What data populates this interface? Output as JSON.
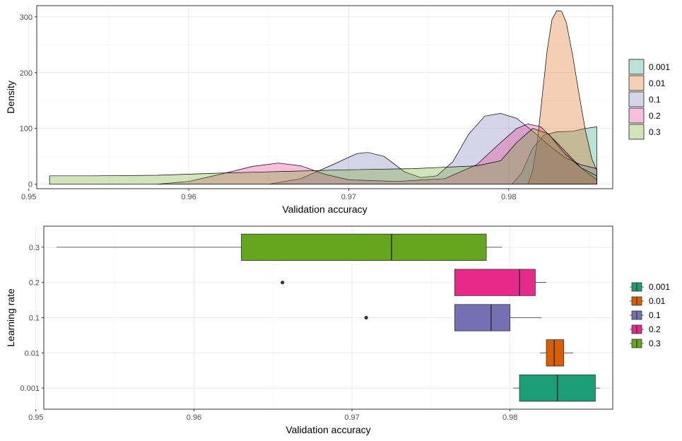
{
  "chart_data": [
    {
      "type": "area",
      "subtype": "density",
      "xlabel": "Validation accuracy",
      "ylabel": "Density",
      "xlim": [
        0.9505,
        0.9865
      ],
      "ylim": [
        -8,
        320
      ],
      "x_ticks": [
        0.95,
        0.96,
        0.97,
        0.98
      ],
      "x_tick_labels": [
        "0.95",
        "0.96",
        "0.97",
        "0.98"
      ],
      "y_ticks": [
        0,
        100,
        200,
        300
      ],
      "y_tick_labels": [
        "0",
        "100",
        "200",
        "300"
      ],
      "grid": true,
      "legend_position": "right",
      "series": [
        {
          "name": "0.001",
          "color": "#1B9E77",
          "points": [
            [
              0.9802,
              0
            ],
            [
              0.9808,
              20
            ],
            [
              0.9815,
              65
            ],
            [
              0.9822,
              88
            ],
            [
              0.983,
              94
            ],
            [
              0.984,
              95
            ],
            [
              0.9848,
              100
            ],
            [
              0.9855,
              103
            ],
            [
              0.9855,
              0
            ]
          ]
        },
        {
          "name": "0.01",
          "color": "#D95F02",
          "points": [
            [
              0.9812,
              0
            ],
            [
              0.9815,
              25
            ],
            [
              0.9818,
              80
            ],
            [
              0.9821,
              160
            ],
            [
              0.9824,
              240
            ],
            [
              0.9827,
              295
            ],
            [
              0.983,
              311
            ],
            [
              0.9833,
              310
            ],
            [
              0.9836,
              290
            ],
            [
              0.984,
              230
            ],
            [
              0.9844,
              160
            ],
            [
              0.9848,
              95
            ],
            [
              0.9852,
              45
            ],
            [
              0.9855,
              25
            ],
            [
              0.9855,
              0
            ]
          ]
        },
        {
          "name": "0.1",
          "color": "#7570B3",
          "points": [
            [
              0.965,
              0
            ],
            [
              0.967,
              10
            ],
            [
              0.969,
              35
            ],
            [
              0.9705,
              55
            ],
            [
              0.9712,
              57
            ],
            [
              0.9722,
              50
            ],
            [
              0.9735,
              22
            ],
            [
              0.9745,
              12
            ],
            [
              0.9755,
              15
            ],
            [
              0.9765,
              40
            ],
            [
              0.9775,
              90
            ],
            [
              0.9785,
              122
            ],
            [
              0.9795,
              127
            ],
            [
              0.9805,
              118
            ],
            [
              0.9815,
              95
            ],
            [
              0.9825,
              70
            ],
            [
              0.9835,
              48
            ],
            [
              0.9845,
              35
            ],
            [
              0.9855,
              28
            ],
            [
              0.9855,
              0
            ]
          ]
        },
        {
          "name": "0.2",
          "color": "#E7298A",
          "points": [
            [
              0.958,
              0
            ],
            [
              0.96,
              5
            ],
            [
              0.962,
              18
            ],
            [
              0.964,
              32
            ],
            [
              0.9656,
              38
            ],
            [
              0.967,
              33
            ],
            [
              0.9685,
              18
            ],
            [
              0.97,
              8
            ],
            [
              0.973,
              5
            ],
            [
              0.976,
              10
            ],
            [
              0.978,
              35
            ],
            [
              0.9795,
              75
            ],
            [
              0.9805,
              100
            ],
            [
              0.9812,
              108
            ],
            [
              0.982,
              103
            ],
            [
              0.983,
              75
            ],
            [
              0.9845,
              30
            ],
            [
              0.9855,
              8
            ],
            [
              0.9855,
              0
            ]
          ]
        },
        {
          "name": "0.3",
          "color": "#66A61E",
          "points": [
            [
              0.9513,
              0
            ],
            [
              0.9513,
              15
            ],
            [
              0.954,
              15
            ],
            [
              0.958,
              16
            ],
            [
              0.962,
              20
            ],
            [
              0.966,
              23
            ],
            [
              0.97,
              26
            ],
            [
              0.974,
              28
            ],
            [
              0.978,
              33
            ],
            [
              0.9795,
              42
            ],
            [
              0.9805,
              75
            ],
            [
              0.9815,
              100
            ],
            [
              0.9825,
              90
            ],
            [
              0.9835,
              55
            ],
            [
              0.9845,
              30
            ],
            [
              0.9855,
              15
            ],
            [
              0.9855,
              0
            ]
          ]
        }
      ]
    },
    {
      "type": "boxplot",
      "orientation": "horizontal",
      "xlabel": "Validation accuracy",
      "ylabel": "Learning rate",
      "xlim": [
        0.9505,
        0.9865
      ],
      "x_ticks": [
        0.95,
        0.96,
        0.97,
        0.98
      ],
      "x_tick_labels": [
        "0.95",
        "0.96",
        "0.97",
        "0.98"
      ],
      "categories": [
        "0.001",
        "0.01",
        "0.1",
        "0.2",
        "0.3"
      ],
      "grid": true,
      "legend_position": "right",
      "boxes": [
        {
          "name": "0.001",
          "color": "#1B9E77",
          "whisker_low": 0.9802,
          "q1": 0.9806,
          "median": 0.983,
          "q3": 0.9854,
          "whisker_high": 0.9857,
          "outliers": []
        },
        {
          "name": "0.01",
          "color": "#D95F02",
          "whisker_low": 0.9819,
          "q1": 0.9823,
          "median": 0.9828,
          "q3": 0.9834,
          "whisker_high": 0.984,
          "outliers": []
        },
        {
          "name": "0.1",
          "color": "#7570B3",
          "whisker_low": 0.9765,
          "q1": 0.9765,
          "median": 0.9788,
          "q3": 0.98,
          "whisker_high": 0.982,
          "outliers": [
            0.9709
          ]
        },
        {
          "name": "0.2",
          "color": "#E7298A",
          "whisker_low": 0.9765,
          "q1": 0.9765,
          "median": 0.9806,
          "q3": 0.9816,
          "whisker_high": 0.9823,
          "outliers": [
            0.9656
          ]
        },
        {
          "name": "0.3",
          "color": "#66A61E",
          "whisker_low": 0.9513,
          "q1": 0.963,
          "median": 0.9725,
          "q3": 0.9785,
          "whisker_high": 0.9795,
          "outliers": []
        }
      ]
    }
  ]
}
